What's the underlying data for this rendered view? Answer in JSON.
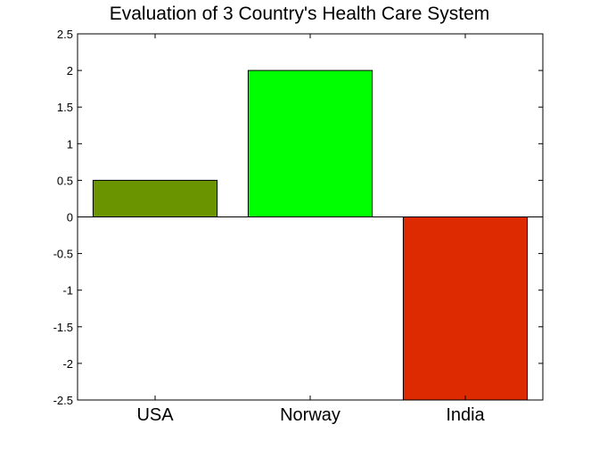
{
  "chart_data": {
    "type": "bar",
    "title": "Evaluation of 3 Country's Health Care System",
    "xlabel": "",
    "ylabel": "",
    "categories": [
      "USA",
      "Norway",
      "India"
    ],
    "values": [
      0.5,
      2.0,
      -2.5
    ],
    "colors": [
      "#6b9500",
      "#00ff00",
      "#dd2a00"
    ],
    "ylim": [
      -2.5,
      2.5
    ],
    "yticks": [
      2.5,
      2,
      1.5,
      1,
      0.5,
      0,
      -0.5,
      -1,
      -1.5,
      -2,
      -2.5
    ],
    "ytick_labels": [
      "2.5",
      "2",
      "1.5",
      "1",
      "0.5",
      "0",
      "-0.5",
      "-1",
      "-1.5",
      "-2",
      "-2.5"
    ],
    "grid": false,
    "legend": false
  }
}
